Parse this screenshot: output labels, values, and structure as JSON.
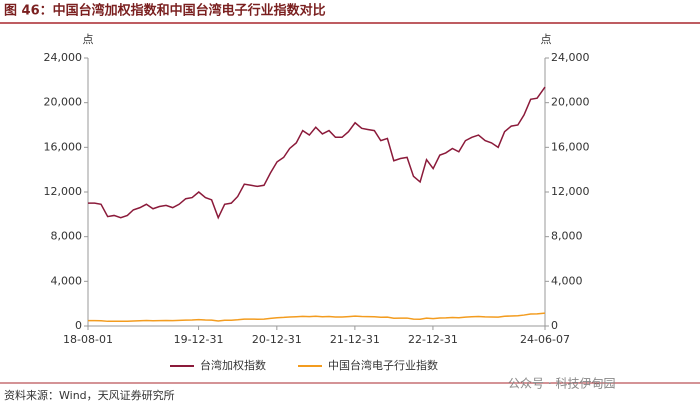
{
  "chart_data": {
    "type": "line",
    "title": "图 46：中国台湾加权指数和中国台湾电子行业指数对比",
    "y_unit": "点",
    "y2_unit": "点",
    "source": "资料来源：Wind，天风证券研究所",
    "watermark": "公众号 · 科技伊甸园",
    "x": [
      "2018-08-01",
      "2018-09-01",
      "2018-10-01",
      "2018-11-01",
      "2018-12-01",
      "2019-01-01",
      "2019-02-01",
      "2019-03-01",
      "2019-04-01",
      "2019-05-01",
      "2019-06-01",
      "2019-07-01",
      "2019-08-01",
      "2019-09-01",
      "2019-10-01",
      "2019-11-01",
      "2019-12-01",
      "2020-01-01",
      "2020-02-01",
      "2020-03-01",
      "2020-04-01",
      "2020-05-01",
      "2020-06-01",
      "2020-07-01",
      "2020-08-01",
      "2020-09-01",
      "2020-10-01",
      "2020-11-01",
      "2020-12-01",
      "2021-01-01",
      "2021-02-01",
      "2021-03-01",
      "2021-04-01",
      "2021-05-01",
      "2021-06-01",
      "2021-07-01",
      "2021-08-01",
      "2021-09-01",
      "2021-10-01",
      "2021-11-01",
      "2021-12-01",
      "2022-01-01",
      "2022-02-01",
      "2022-03-01",
      "2022-04-01",
      "2022-05-01",
      "2022-06-01",
      "2022-07-01",
      "2022-08-01",
      "2022-09-01",
      "2022-10-01",
      "2022-11-01",
      "2022-12-01",
      "2023-01-01",
      "2023-02-01",
      "2023-03-01",
      "2023-04-01",
      "2023-05-01",
      "2023-06-01",
      "2023-07-01",
      "2023-08-01",
      "2023-09-01",
      "2023-10-01",
      "2023-11-01",
      "2023-12-01",
      "2024-01-01",
      "2024-02-01",
      "2024-03-01",
      "2024-04-01",
      "2024-05-01",
      "2024-06-07"
    ],
    "xlim": [
      "2018-08-01",
      "2024-06-07"
    ],
    "xticks": [
      {
        "value": "2018-08-01",
        "label": "18-08-01"
      },
      {
        "value": "2019-12-31",
        "label": "19-12-31"
      },
      {
        "value": "2020-12-31",
        "label": "20-12-31"
      },
      {
        "value": "2021-12-31",
        "label": "21-12-31"
      },
      {
        "value": "2022-12-31",
        "label": "22-12-31"
      },
      {
        "value": "2024-06-07",
        "label": "24-06-07"
      }
    ],
    "ylim": [
      0,
      24000
    ],
    "yticks": [
      0,
      {
        "value": 4000,
        "label": "4,000"
      },
      {
        "value": 8000,
        "label": "8,000"
      },
      {
        "value": 12000,
        "label": "12,000"
      },
      {
        "value": 16000,
        "label": "16,000"
      },
      {
        "value": 20000,
        "label": "20,000"
      },
      {
        "value": 24000,
        "label": "24,000"
      }
    ],
    "y2lim": [
      0,
      24000
    ],
    "y2ticks": [
      0,
      {
        "value": 4000,
        "label": "4,000"
      },
      {
        "value": 8000,
        "label": "8,000"
      },
      {
        "value": 12000,
        "label": "12,000"
      },
      {
        "value": 16000,
        "label": "16,000"
      },
      {
        "value": 20000,
        "label": "20,000"
      },
      {
        "value": 24000,
        "label": "24,000"
      }
    ],
    "grid": false,
    "series": [
      {
        "name": "台湾加权指数",
        "color": "#8b1a3a",
        "values": [
          11000,
          11000,
          10900,
          9800,
          9900,
          9700,
          9900,
          10400,
          10600,
          10900,
          10500,
          10700,
          10800,
          10600,
          10900,
          11400,
          11500,
          12000,
          11500,
          11300,
          9700,
          10900,
          11000,
          11600,
          12700,
          12600,
          12500,
          12600,
          13700,
          14700,
          15100,
          15900,
          16400,
          17500,
          17100,
          17800,
          17200,
          17500,
          16900,
          16900,
          17400,
          18200,
          17700,
          17600,
          17500,
          16600,
          16800,
          14800,
          15000,
          15100,
          13400,
          12900,
          14900,
          14100,
          15300,
          15500,
          15900,
          15600,
          16600,
          16900,
          17100,
          16600,
          16400,
          16000,
          17400,
          17900,
          18000,
          18900,
          20300,
          20400,
          21400
        ]
      },
      {
        "name": "中国台湾电子行业指数",
        "color": "#f39c1f",
        "axis": "y2",
        "values": [
          480,
          480,
          470,
          420,
          430,
          420,
          430,
          450,
          470,
          490,
          470,
          480,
          490,
          480,
          500,
          530,
          540,
          570,
          540,
          530,
          450,
          510,
          520,
          560,
          620,
          620,
          610,
          620,
          680,
          740,
          770,
          810,
          830,
          860,
          840,
          870,
          830,
          850,
          810,
          810,
          840,
          880,
          850,
          840,
          830,
          780,
          790,
          690,
          700,
          710,
          620,
          600,
          700,
          660,
          720,
          730,
          760,
          740,
          800,
          830,
          850,
          820,
          810,
          790,
          870,
          900,
          920,
          980,
          1070,
          1090,
          1150
        ]
      }
    ]
  }
}
